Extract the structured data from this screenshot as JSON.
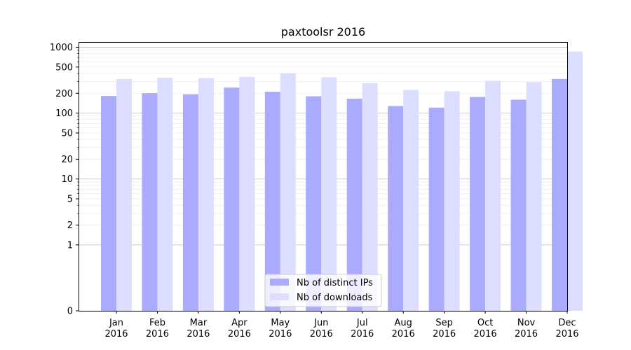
{
  "chart_data": {
    "type": "bar",
    "title": "paxtoolsr 2016",
    "xlabel": "",
    "ylabel": "",
    "yscale": "symlog",
    "ylim": [
      0,
      1200
    ],
    "y_ticks": [
      0,
      1,
      2,
      5,
      10,
      20,
      50,
      100,
      200,
      500,
      1000
    ],
    "grid": true,
    "legend_position": "bottom-center",
    "categories": [
      [
        "Jan",
        "2016"
      ],
      [
        "Feb",
        "2016"
      ],
      [
        "Mar",
        "2016"
      ],
      [
        "Apr",
        "2016"
      ],
      [
        "May",
        "2016"
      ],
      [
        "Jun",
        "2016"
      ],
      [
        "Jul",
        "2016"
      ],
      [
        "Aug",
        "2016"
      ],
      [
        "Sep",
        "2016"
      ],
      [
        "Oct",
        "2016"
      ],
      [
        "Nov",
        "2016"
      ],
      [
        "Dec",
        "2016"
      ]
    ],
    "series": [
      {
        "name": "Nb of distinct IPs",
        "color": "#aaaaff",
        "values": [
          182,
          200,
          193,
          244,
          211,
          180,
          166,
          128,
          121,
          176,
          160,
          330
        ]
      },
      {
        "name": "Nb of downloads",
        "color": "#ddddff",
        "values": [
          330,
          345,
          340,
          355,
          405,
          350,
          285,
          225,
          215,
          310,
          295,
          860
        ]
      }
    ]
  }
}
